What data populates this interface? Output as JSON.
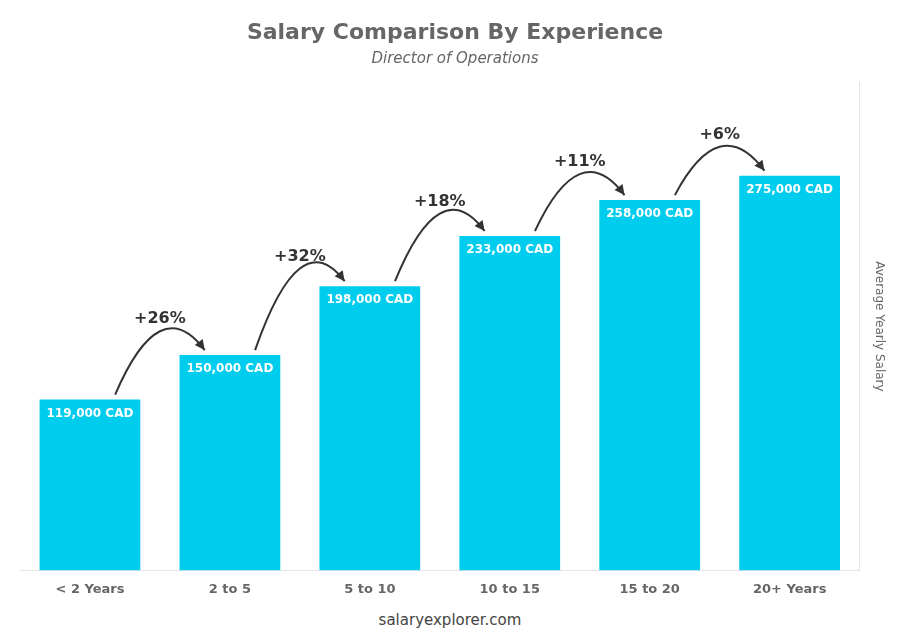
{
  "chart_data": {
    "type": "bar",
    "title": "Salary Comparison By Experience",
    "subtitle": "Director of Operations",
    "y_label": "Average Yearly Salary",
    "footer": "salaryexplorer.com",
    "categories": [
      "< 2 Years",
      "2 to 5",
      "5 to 10",
      "10 to 15",
      "15 to 20",
      "20+ Years"
    ],
    "values": [
      119000,
      150000,
      198000,
      233000,
      258000,
      275000
    ],
    "value_labels": [
      "119,000 CAD",
      "150,000 CAD",
      "198,000 CAD",
      "233,000 CAD",
      "258,000 CAD",
      "275,000 CAD"
    ],
    "data_labels": true,
    "annotations": [
      "+26%",
      "+32%",
      "+18%",
      "+11%",
      "+6%"
    ],
    "color": "#00ccee",
    "ylim": [
      0,
      340000
    ],
    "grid": false,
    "tick_labels": "x"
  }
}
